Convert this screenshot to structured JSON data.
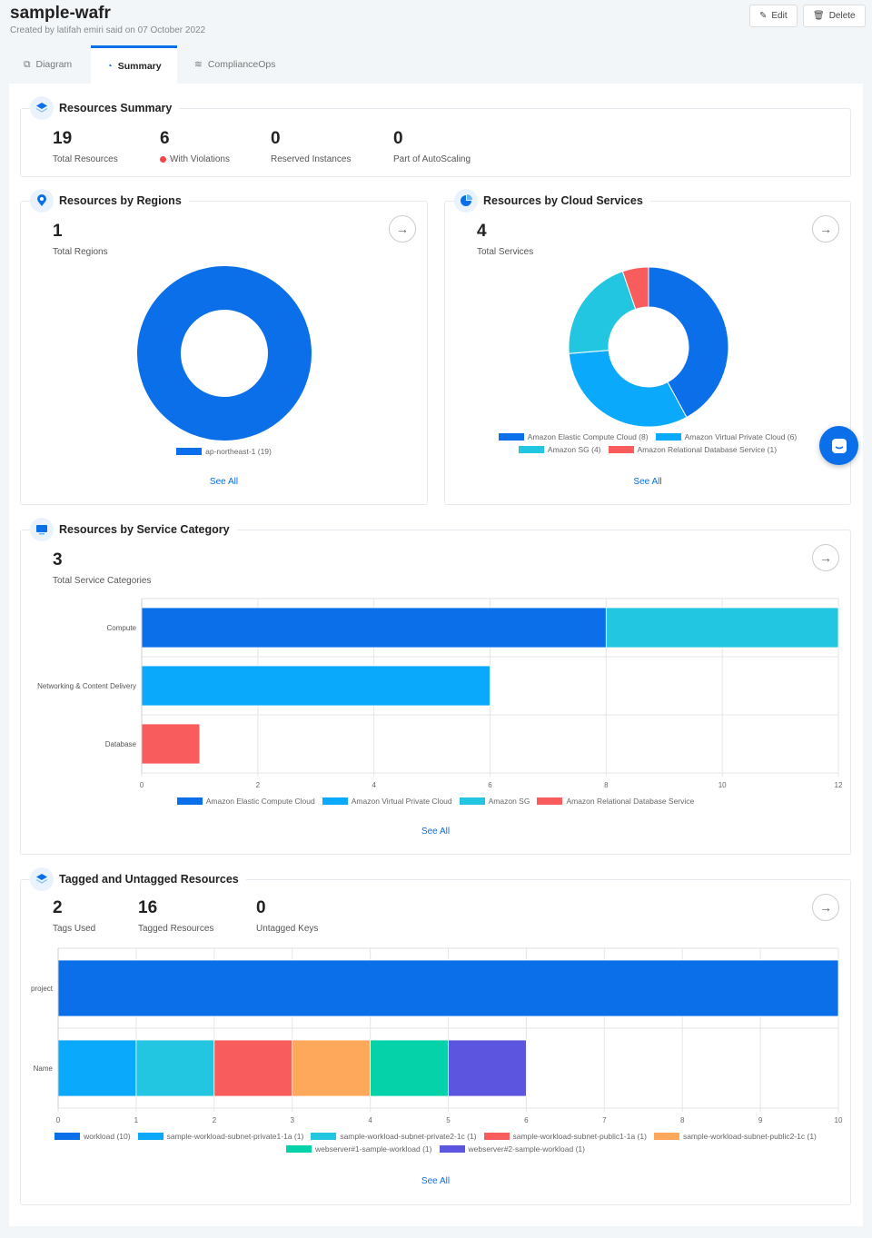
{
  "header": {
    "title": "sample-wafr",
    "subtitle": "Created by latifah emiri said on 07 October 2022",
    "edit_label": "Edit",
    "delete_label": "Delete"
  },
  "tabs": [
    {
      "label": "Diagram"
    },
    {
      "label": "Summary",
      "active": true
    },
    {
      "label": "ComplianceOps"
    }
  ],
  "resources_summary": {
    "title": "Resources Summary",
    "stats": [
      {
        "value": "19",
        "label": "Total Resources"
      },
      {
        "value": "6",
        "label": "With Violations"
      },
      {
        "value": "0",
        "label": "Reserved Instances"
      },
      {
        "value": "0",
        "label": "Part of AutoScaling"
      }
    ]
  },
  "regions": {
    "title": "Resources by Regions",
    "value": "1",
    "label": "Total Regions",
    "see_all": "See All"
  },
  "cloud_services": {
    "title": "Resources by Cloud Services",
    "value": "4",
    "label": "Total Services",
    "see_all": "See All"
  },
  "service_category": {
    "title": "Resources by Service Category",
    "value": "3",
    "label": "Total Service Categories",
    "see_all": "See All"
  },
  "tagged": {
    "title": "Tagged and Untagged Resources",
    "stats": [
      {
        "value": "2",
        "label": "Tags Used"
      },
      {
        "value": "16",
        "label": "Tagged Resources"
      },
      {
        "value": "0",
        "label": "Untagged Keys"
      }
    ],
    "see_all": "See All"
  },
  "colors": {
    "accent": "#0a6fe8",
    "violation": "#f0464b"
  },
  "chart_data": [
    {
      "type": "pie",
      "donut": true,
      "slices": [
        {
          "label": "ap-northeast-1 (19)",
          "value": 19,
          "color": "#0a6fe8"
        }
      ]
    },
    {
      "type": "pie",
      "donut": true,
      "slices": [
        {
          "label": "Amazon Elastic Compute Cloud (8)",
          "value": 8,
          "color": "#0a6fe8"
        },
        {
          "label": "Amazon Virtual Private Cloud (6)",
          "value": 6,
          "color": "#0aa9fb"
        },
        {
          "label": "Amazon SG (4)",
          "value": 4,
          "color": "#22c6e0"
        },
        {
          "label": "Amazon Relational Database Service (1)",
          "value": 1,
          "color": "#f85c5c"
        }
      ]
    },
    {
      "type": "bar",
      "orientation": "horizontal",
      "stacked": true,
      "categories": [
        "Compute",
        "Networking & Content Delivery",
        "Database"
      ],
      "xlim": [
        0,
        12
      ],
      "xticks": [
        0,
        2,
        4,
        6,
        8,
        10,
        12
      ],
      "grid": true,
      "legend": "bottom",
      "series": [
        {
          "name": "Amazon Elastic Compute Cloud",
          "values": [
            8,
            0,
            0
          ],
          "color": "#0a6fe8"
        },
        {
          "name": "Amazon Virtual Private Cloud",
          "values": [
            0,
            6,
            0
          ],
          "color": "#0aa9fb"
        },
        {
          "name": "Amazon SG",
          "values": [
            4,
            0,
            0
          ],
          "color": "#22c6e0"
        },
        {
          "name": "Amazon Relational Database Service",
          "values": [
            0,
            0,
            1
          ],
          "color": "#f85c5c"
        }
      ]
    },
    {
      "type": "bar",
      "orientation": "horizontal",
      "stacked": true,
      "categories": [
        "project",
        "Name"
      ],
      "xlim": [
        0,
        10
      ],
      "xticks": [
        0,
        1,
        2,
        3,
        4,
        5,
        6,
        7,
        8,
        9,
        10
      ],
      "grid": true,
      "legend": "bottom",
      "series": [
        {
          "name": "workload (10)",
          "values": [
            10,
            0
          ],
          "color": "#0a6fe8"
        },
        {
          "name": "sample-workload-subnet-private1-1a (1)",
          "values": [
            0,
            1
          ],
          "color": "#0aa9fb"
        },
        {
          "name": "sample-workload-subnet-private2-1c (1)",
          "values": [
            0,
            1
          ],
          "color": "#22c6e0"
        },
        {
          "name": "sample-workload-subnet-public1-1a (1)",
          "values": [
            0,
            1
          ],
          "color": "#f85c5c"
        },
        {
          "name": "sample-workload-subnet-public2-1c (1)",
          "values": [
            0,
            1
          ],
          "color": "#fea85c"
        },
        {
          "name": "webserver#1-sample-workload (1)",
          "values": [
            0,
            1
          ],
          "color": "#05d2a9"
        },
        {
          "name": "webserver#2-sample-workload (1)",
          "values": [
            0,
            1
          ],
          "color": "#5c55e0"
        }
      ]
    }
  ]
}
